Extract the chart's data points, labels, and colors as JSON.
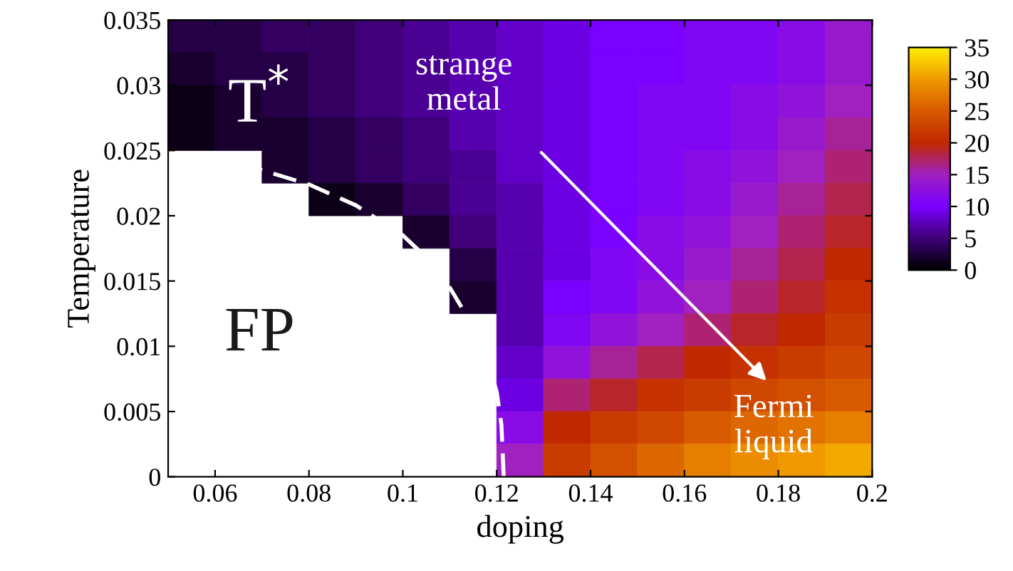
{
  "chart_data": {
    "type": "heatmap",
    "xlabel": "doping",
    "ylabel": "Temperature",
    "xlim": [
      0.05,
      0.2
    ],
    "xticks": [
      0.06,
      0.08,
      0.1,
      0.12,
      0.14,
      0.16,
      0.18,
      0.2
    ],
    "ylim": [
      0,
      0.035
    ],
    "yticks": [
      0,
      0.005,
      0.01,
      0.015,
      0.02,
      0.025,
      0.03,
      0.035
    ],
    "x": [
      0.055,
      0.065,
      0.075,
      0.085,
      0.095,
      0.105,
      0.115,
      0.125,
      0.135,
      0.145,
      0.155,
      0.165,
      0.175,
      0.185,
      0.195
    ],
    "cells": [
      [
        3,
        3,
        4,
        4,
        5,
        6,
        7,
        8,
        9,
        10,
        10,
        11,
        11,
        12,
        14
      ],
      [
        2,
        3,
        3,
        4,
        5,
        6,
        7,
        8,
        9,
        10,
        10,
        11,
        11,
        12,
        14
      ],
      [
        1,
        2,
        3,
        4,
        5,
        6,
        7,
        8,
        9,
        10,
        11,
        11,
        12,
        13,
        15
      ],
      [
        1,
        2,
        2,
        3,
        4,
        5,
        7,
        8,
        9,
        10,
        11,
        11,
        12,
        14,
        16
      ],
      [
        null,
        null,
        2,
        3,
        4,
        5,
        6,
        8,
        9,
        10,
        11,
        12,
        13,
        15,
        17
      ],
      [
        null,
        null,
        null,
        1,
        2,
        4,
        6,
        7,
        9,
        10,
        11,
        12,
        14,
        16,
        18
      ],
      [
        null,
        null,
        null,
        null,
        null,
        2,
        5,
        7,
        9,
        10,
        12,
        13,
        15,
        17,
        19
      ],
      [
        null,
        null,
        null,
        null,
        null,
        null,
        3,
        7,
        9,
        11,
        12,
        14,
        16,
        18,
        20
      ],
      [
        null,
        null,
        null,
        null,
        null,
        null,
        2,
        7,
        10,
        11,
        13,
        15,
        17,
        19,
        21
      ],
      [
        null,
        null,
        null,
        null,
        null,
        null,
        null,
        7,
        11,
        13,
        15,
        17,
        19,
        20,
        22
      ],
      [
        null,
        null,
        null,
        null,
        null,
        null,
        null,
        8,
        13,
        16,
        18,
        20,
        21,
        22,
        23
      ],
      [
        null,
        null,
        null,
        null,
        null,
        null,
        null,
        9,
        17,
        19,
        21,
        22,
        23,
        24,
        25
      ],
      [
        null,
        null,
        null,
        null,
        null,
        null,
        null,
        12,
        20,
        22,
        23,
        25,
        26,
        27,
        28
      ],
      [
        null,
        null,
        null,
        null,
        null,
        null,
        null,
        15,
        22,
        24,
        26,
        28,
        29,
        30,
        31
      ]
    ],
    "clim": [
      0,
      35
    ],
    "cticks": [
      0,
      5,
      10,
      15,
      20,
      25,
      30,
      35
    ],
    "series": [
      {
        "type": "line",
        "color": "#ffffff",
        "line_style": "dashed",
        "x": [
          0.05,
          0.06,
          0.07,
          0.08,
          0.09,
          0.1,
          0.105,
          0.11,
          0.115,
          0.118,
          0.12,
          0.121,
          0.1215
        ],
        "values": [
          0.0245,
          0.0242,
          0.0235,
          0.0224,
          0.0208,
          0.0185,
          0.0168,
          0.0145,
          0.0115,
          0.009,
          0.0065,
          0.004,
          0.0
        ]
      }
    ],
    "annotations": [
      "T$^{*}$",
      "FP",
      "strange\nmetal",
      "Fermi\nliquid"
    ],
    "grid": false
  }
}
